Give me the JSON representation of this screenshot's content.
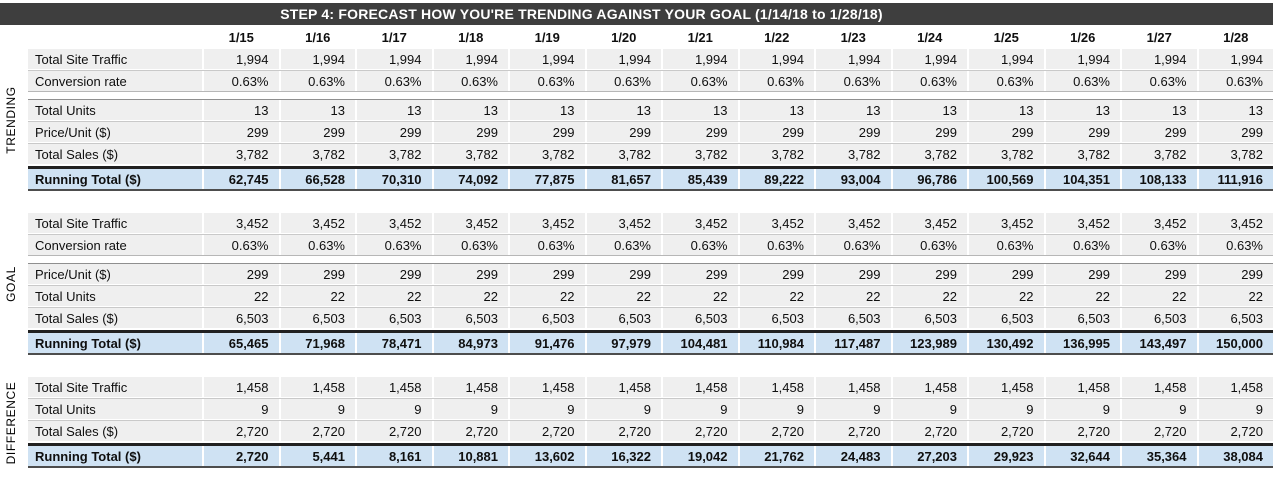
{
  "title": "STEP 4: FORECAST HOW YOU'RE TRENDING AGAINST YOUR GOAL (1/14/18 to 1/28/18)",
  "columns": [
    "1/15",
    "1/16",
    "1/17",
    "1/18",
    "1/19",
    "1/20",
    "1/21",
    "1/22",
    "1/23",
    "1/24",
    "1/25",
    "1/26",
    "1/27",
    "1/28"
  ],
  "colors": {
    "title_bar": "#3e3e3e",
    "row_bg": "#efefef",
    "running_total_bg": "#cfe2f3",
    "block_border": "#212121"
  },
  "sections": [
    {
      "name": "TRENDING",
      "groups": [
        {
          "rows": [
            {
              "label": "Total Site Traffic",
              "values": [
                "1,994",
                "1,994",
                "1,994",
                "1,994",
                "1,994",
                "1,994",
                "1,994",
                "1,994",
                "1,994",
                "1,994",
                "1,994",
                "1,994",
                "1,994",
                "1,994"
              ]
            },
            {
              "label": "Conversion rate",
              "values": [
                "0.63%",
                "0.63%",
                "0.63%",
                "0.63%",
                "0.63%",
                "0.63%",
                "0.63%",
                "0.63%",
                "0.63%",
                "0.63%",
                "0.63%",
                "0.63%",
                "0.63%",
                "0.63%"
              ]
            }
          ]
        },
        {
          "rows": [
            {
              "label": "Total Units",
              "values": [
                "13",
                "13",
                "13",
                "13",
                "13",
                "13",
                "13",
                "13",
                "13",
                "13",
                "13",
                "13",
                "13",
                "13"
              ]
            },
            {
              "label": "Price/Unit ($)",
              "values": [
                "299",
                "299",
                "299",
                "299",
                "299",
                "299",
                "299",
                "299",
                "299",
                "299",
                "299",
                "299",
                "299",
                "299"
              ]
            },
            {
              "label": "Total Sales ($)",
              "values": [
                "3,782",
                "3,782",
                "3,782",
                "3,782",
                "3,782",
                "3,782",
                "3,782",
                "3,782",
                "3,782",
                "3,782",
                "3,782",
                "3,782",
                "3,782",
                "3,782"
              ]
            }
          ]
        }
      ],
      "running_total": {
        "label": "Running Total ($)",
        "values": [
          "62,745",
          "66,528",
          "70,310",
          "74,092",
          "77,875",
          "81,657",
          "85,439",
          "89,222",
          "93,004",
          "96,786",
          "100,569",
          "104,351",
          "108,133",
          "111,916"
        ]
      }
    },
    {
      "name": "GOAL",
      "groups": [
        {
          "rows": [
            {
              "label": "Total Site Traffic",
              "values": [
                "3,452",
                "3,452",
                "3,452",
                "3,452",
                "3,452",
                "3,452",
                "3,452",
                "3,452",
                "3,452",
                "3,452",
                "3,452",
                "3,452",
                "3,452",
                "3,452"
              ]
            },
            {
              "label": "Conversion rate",
              "values": [
                "0.63%",
                "0.63%",
                "0.63%",
                "0.63%",
                "0.63%",
                "0.63%",
                "0.63%",
                "0.63%",
                "0.63%",
                "0.63%",
                "0.63%",
                "0.63%",
                "0.63%",
                "0.63%"
              ]
            }
          ]
        },
        {
          "rows": [
            {
              "label": "Price/Unit ($)",
              "values": [
                "299",
                "299",
                "299",
                "299",
                "299",
                "299",
                "299",
                "299",
                "299",
                "299",
                "299",
                "299",
                "299",
                "299"
              ]
            },
            {
              "label": "Total Units",
              "values": [
                "22",
                "22",
                "22",
                "22",
                "22",
                "22",
                "22",
                "22",
                "22",
                "22",
                "22",
                "22",
                "22",
                "22"
              ]
            },
            {
              "label": "Total Sales ($)",
              "values": [
                "6,503",
                "6,503",
                "6,503",
                "6,503",
                "6,503",
                "6,503",
                "6,503",
                "6,503",
                "6,503",
                "6,503",
                "6,503",
                "6,503",
                "6,503",
                "6,503"
              ]
            }
          ]
        }
      ],
      "running_total": {
        "label": "Running Total ($)",
        "values": [
          "65,465",
          "71,968",
          "78,471",
          "84,973",
          "91,476",
          "97,979",
          "104,481",
          "110,984",
          "117,487",
          "123,989",
          "130,492",
          "136,995",
          "143,497",
          "150,000"
        ]
      }
    },
    {
      "name": "DIFFERENCE",
      "groups": [
        {
          "rows": [
            {
              "label": "Total Site Traffic",
              "values": [
                "1,458",
                "1,458",
                "1,458",
                "1,458",
                "1,458",
                "1,458",
                "1,458",
                "1,458",
                "1,458",
                "1,458",
                "1,458",
                "1,458",
                "1,458",
                "1,458"
              ]
            },
            {
              "label": "Total Units",
              "values": [
                "9",
                "9",
                "9",
                "9",
                "9",
                "9",
                "9",
                "9",
                "9",
                "9",
                "9",
                "9",
                "9",
                "9"
              ]
            },
            {
              "label": "Total Sales ($)",
              "values": [
                "2,720",
                "2,720",
                "2,720",
                "2,720",
                "2,720",
                "2,720",
                "2,720",
                "2,720",
                "2,720",
                "2,720",
                "2,720",
                "2,720",
                "2,720",
                "2,720"
              ]
            }
          ]
        }
      ],
      "running_total": {
        "label": "Running Total ($)",
        "values": [
          "2,720",
          "5,441",
          "8,161",
          "10,881",
          "13,602",
          "16,322",
          "19,042",
          "21,762",
          "24,483",
          "27,203",
          "29,923",
          "32,644",
          "35,364",
          "38,084"
        ]
      }
    }
  ]
}
